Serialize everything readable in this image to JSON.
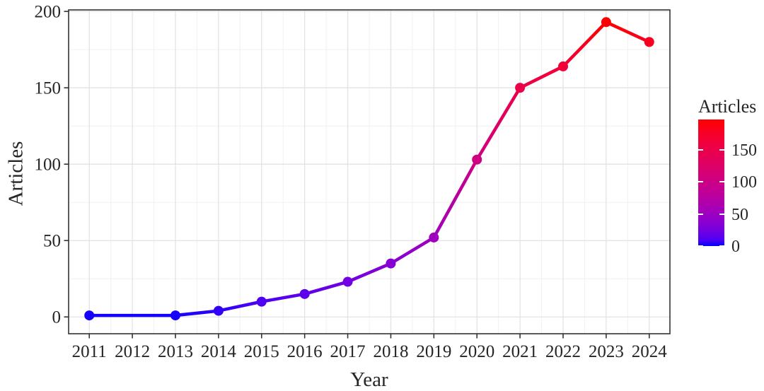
{
  "figure": {
    "background": "#ffffff"
  },
  "chart_data": {
    "type": "line",
    "title": "",
    "xlabel": "Year",
    "ylabel": "Articles",
    "x_tick_labels": [
      "2011",
      "2012",
      "2013",
      "2014",
      "2015",
      "2016",
      "2017",
      "2018",
      "2019",
      "2020",
      "2021",
      "2022",
      "2023",
      "2024"
    ],
    "x_ticks": [
      2011,
      2012,
      2013,
      2014,
      2015,
      2016,
      2017,
      2018,
      2019,
      2020,
      2021,
      2022,
      2023,
      2024
    ],
    "y_tick_labels": [
      "0",
      "50",
      "100",
      "150",
      "200"
    ],
    "y_major": [
      0,
      50,
      100,
      150,
      200
    ],
    "y_minor": [
      25,
      75,
      125,
      175
    ],
    "xlim": [
      2010.52,
      2024.48
    ],
    "ylim": [
      -11,
      201
    ],
    "grid": true,
    "legend_position": "right",
    "series": [
      {
        "name": "Articles",
        "points": [
          [
            2011,
            1
          ],
          [
            2013,
            1
          ],
          [
            2014,
            4
          ],
          [
            2015,
            10
          ],
          [
            2016,
            15
          ],
          [
            2017,
            23
          ],
          [
            2018,
            35
          ],
          [
            2019,
            52
          ],
          [
            2020,
            103
          ],
          [
            2021,
            150
          ],
          [
            2022,
            164
          ],
          [
            2023,
            193
          ],
          [
            2024,
            180
          ]
        ]
      }
    ],
    "color_scale": {
      "low": "#0000FF",
      "high": "#FF0000",
      "domain": [
        0,
        193
      ]
    }
  },
  "legend": {
    "title": "Articles",
    "ticks": [
      150,
      100,
      50,
      0
    ],
    "bar_top_value": 197,
    "bar_bottom_value": 0
  },
  "colors": {
    "text": "#262626",
    "axis": "#333333",
    "grid_major": "#e3e3e3",
    "grid_minor": "#f1f1f1",
    "panel_bg": "#ffffff",
    "legend_tick": "#ffffff"
  }
}
